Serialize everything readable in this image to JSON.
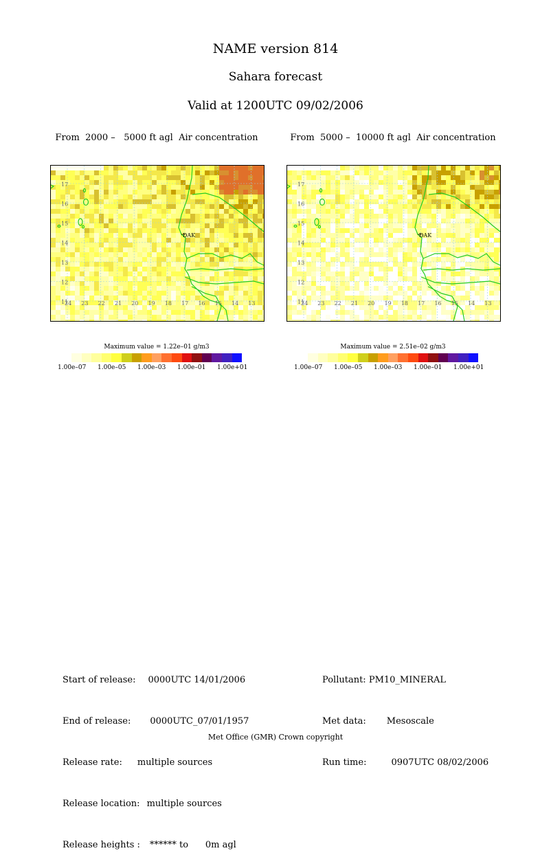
{
  "header": {
    "title": "NAME version 814",
    "subtitle": "Sahara forecast",
    "valid": "Valid at 1200UTC 09/02/2006"
  },
  "panels": [
    {
      "title": "From  2000 –   5000 ft agl  Air concentration",
      "max_value": "Maximum value = 1.22e–01 g/m3",
      "lat_labels": [
        "17",
        "16",
        "15",
        "14",
        "13",
        "12",
        "11"
      ],
      "lon_labels": [
        "24",
        "23",
        "22",
        "21",
        "20",
        "19",
        "18",
        "17",
        "16",
        "15",
        "14",
        "13"
      ],
      "site_label": "DAK",
      "intensity": 0.75
    },
    {
      "title": "From  5000 –  10000 ft agl  Air concentration",
      "max_value": "Maximum value = 2.51e–02 g/m3",
      "lat_labels": [
        "17",
        "16",
        "15",
        "14",
        "13",
        "12",
        "11"
      ],
      "lon_labels": [
        "24",
        "23",
        "22",
        "21",
        "20",
        "19",
        "18",
        "17",
        "16",
        "15",
        "14",
        "13"
      ],
      "site_label": "DAK",
      "intensity": 0.4
    }
  ],
  "color_scale": {
    "colors": [
      "#ffffe0",
      "#ffffc0",
      "#ffff9c",
      "#ffff70",
      "#ffff40",
      "#cfcf1c",
      "#c8a000",
      "#ff9c1c",
      "#ffa060",
      "#ff7030",
      "#ff4a10",
      "#e01010",
      "#901010",
      "#600050",
      "#6018a0",
      "#4020c0",
      "#1010ff"
    ],
    "labels": [
      "1.00e–07",
      "1.00e–05",
      "1.00e–03",
      "1.00e–01",
      "1.00e+01"
    ]
  },
  "release_info": {
    "start_label": "Start of release:",
    "start_value": "0000UTC 14/01/2006",
    "end_label": "End of release:",
    "end_value": "0000UTC_07/01/1957",
    "rate_label": "Release rate:",
    "rate_value": "multiple sources",
    "location_label": "Release location:",
    "location_value": "multiple sources",
    "heights_label": "Release heights :",
    "heights_value": "****** to      0m agl"
  },
  "run_info": {
    "pollutant_label": "Pollutant:",
    "pollutant_value": "PM10_MINERAL",
    "met_label": "Met data:",
    "met_value": "Mesoscale",
    "run_label": "Run time:",
    "run_value": "0907UTC 08/02/2006"
  },
  "footer": "Met Office (GMR)  Crown copyright"
}
